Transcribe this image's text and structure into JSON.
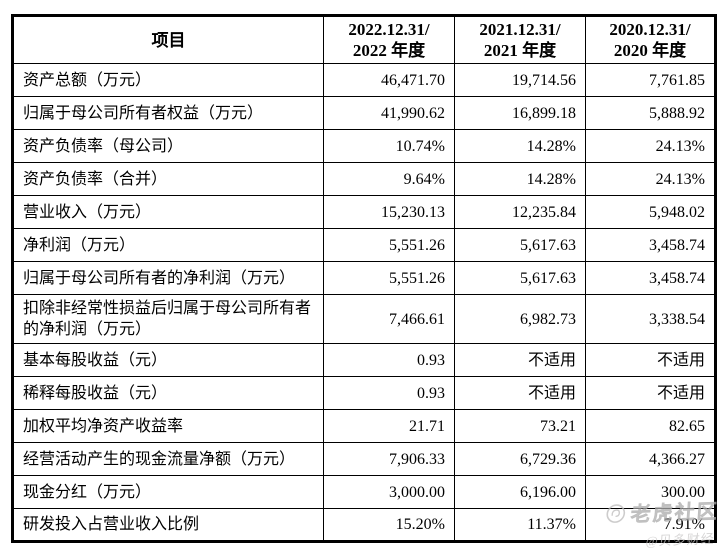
{
  "table": {
    "columns": [
      "项目",
      "2022.12.31/\n2022 年度",
      "2021.12.31/\n2021 年度",
      "2020.12.31/\n2020 年度"
    ],
    "rows": [
      {
        "label": "资产总额（万元）",
        "v2022": "46,471.70",
        "v2021": "19,714.56",
        "v2020": "7,761.85"
      },
      {
        "label": "归属于母公司所有者权益（万元）",
        "v2022": "41,990.62",
        "v2021": "16,899.18",
        "v2020": "5,888.92"
      },
      {
        "label": "资产负债率（母公司）",
        "v2022": "10.74%",
        "v2021": "14.28%",
        "v2020": "24.13%"
      },
      {
        "label": "资产负债率（合并）",
        "v2022": "9.64%",
        "v2021": "14.28%",
        "v2020": "24.13%"
      },
      {
        "label": "营业收入（万元）",
        "v2022": "15,230.13",
        "v2021": "12,235.84",
        "v2020": "5,948.02"
      },
      {
        "label": "净利润（万元）",
        "v2022": "5,551.26",
        "v2021": "5,617.63",
        "v2020": "3,458.74"
      },
      {
        "label": "归属于母公司所有者的净利润（万元）",
        "v2022": "5,551.26",
        "v2021": "5,617.63",
        "v2020": "3,458.74"
      },
      {
        "label": "扣除非经常性损益后归属于母公司所有者的净利润（万元）",
        "v2022": "7,466.61",
        "v2021": "6,982.73",
        "v2020": "3,338.54"
      },
      {
        "label": "基本每股收益（元）",
        "v2022": "0.93",
        "v2021": "不适用",
        "v2020": "不适用"
      },
      {
        "label": "稀释每股收益（元）",
        "v2022": "0.93",
        "v2021": "不适用",
        "v2020": "不适用"
      },
      {
        "label": "加权平均净资产收益率",
        "v2022": "21.71",
        "v2021": "73.21",
        "v2020": "82.65"
      },
      {
        "label": "经营活动产生的现金流量净额（万元）",
        "v2022": "7,906.33",
        "v2021": "6,729.36",
        "v2020": "4,366.27"
      },
      {
        "label": "现金分红（万元）",
        "v2022": "3,000.00",
        "v2021": "6,196.00",
        "v2020": "300.00"
      },
      {
        "label": "研发投入占营业收入比例",
        "v2022": "15.20%",
        "v2021": "11.37%",
        "v2020": "7.91%"
      }
    ]
  },
  "watermark": {
    "brand": "老虎社区",
    "handle": "@贝多财经",
    "color": "#bdbcbc"
  }
}
